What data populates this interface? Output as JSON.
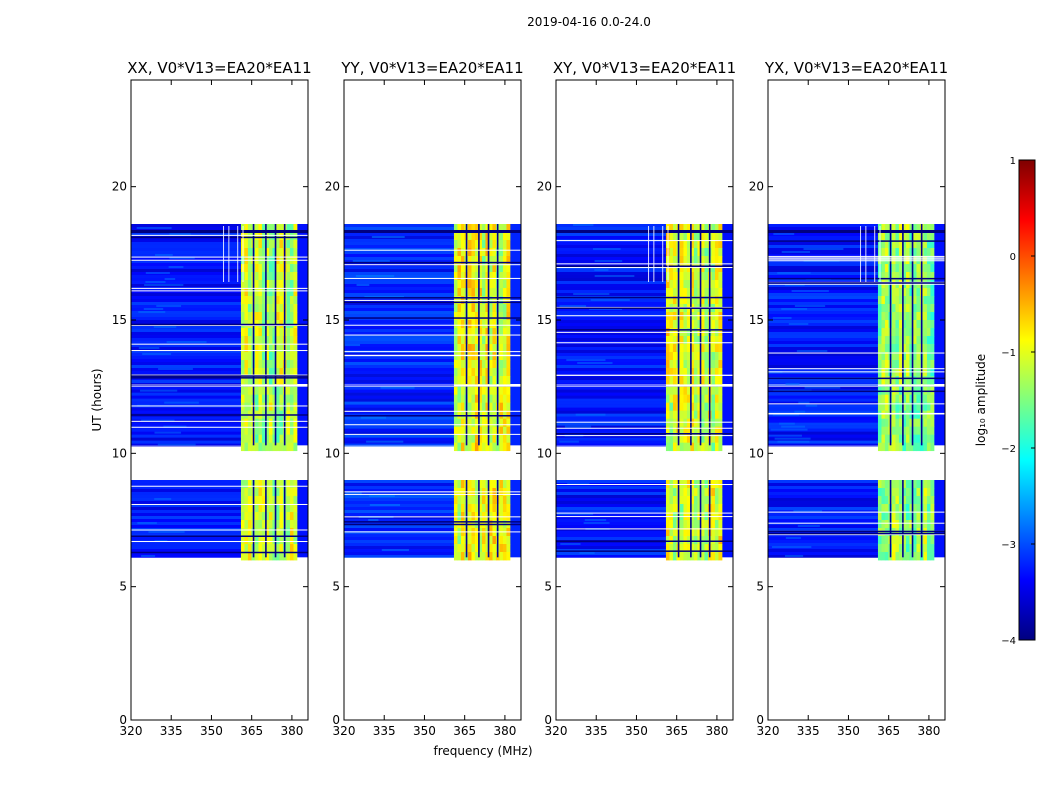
{
  "figure_title": "2019-04-16 0.0-24.0",
  "xlabel": "frequency (MHz)",
  "ylabel": "UT (hours)",
  "colorbar": {
    "label": "log₁₀ amplitude",
    "range": [
      -4,
      1
    ],
    "ticks": [
      "−4",
      "−3",
      "−2",
      "−1",
      "0",
      "1"
    ],
    "tick_values": [
      -4,
      -3,
      -2,
      -1,
      0,
      1
    ],
    "colormap": "jet",
    "colors": [
      "#00007f",
      "#0000ff",
      "#007fff",
      "#00ffff",
      "#7fff7f",
      "#ffff00",
      "#ff7f00",
      "#ff0000",
      "#7f0000"
    ]
  },
  "chart_data": [
    {
      "type": "heatmap",
      "title": "XX, V0*V13=EA20*EA11",
      "xlabel": "",
      "ylabel": "UT (hours)",
      "xlim": [
        320,
        386
      ],
      "ylim": [
        0,
        24
      ],
      "xticks": [
        "320",
        "335",
        "350",
        "365",
        "380"
      ],
      "xtick_values": [
        320,
        335,
        350,
        365,
        380
      ],
      "yticks": [
        "0",
        "5",
        "10",
        "15",
        "20"
      ],
      "ytick_values": [
        0,
        5,
        10,
        15,
        20
      ],
      "data_blocks_ut": [
        [
          6.1,
          9.0
        ],
        [
          10.3,
          12.5
        ],
        [
          12.6,
          18.6
        ]
      ],
      "background_log_amp": -3.3,
      "bright_band_mhz": [
        361,
        381
      ],
      "bright_log_amp": -1.2,
      "spikes": true
    },
    {
      "type": "heatmap",
      "title": "YY, V0*V13=EA20*EA11",
      "xlabel": "frequency (MHz)",
      "ylabel": "",
      "xlim": [
        320,
        386
      ],
      "ylim": [
        0,
        24
      ],
      "xticks": [
        "320",
        "335",
        "350",
        "365",
        "380"
      ],
      "xtick_values": [
        320,
        335,
        350,
        365,
        380
      ],
      "yticks": [
        "0",
        "5",
        "10",
        "15",
        "20"
      ],
      "ytick_values": [
        0,
        5,
        10,
        15,
        20
      ],
      "data_blocks_ut": [
        [
          6.1,
          9.0
        ],
        [
          10.3,
          12.5
        ],
        [
          12.6,
          18.6
        ]
      ],
      "background_log_amp": -3.2,
      "bright_band_mhz": [
        361,
        381
      ],
      "bright_log_amp": -1.0,
      "spikes": false
    },
    {
      "type": "heatmap",
      "title": "XY, V0*V13=EA20*EA11",
      "xlabel": "",
      "ylabel": "",
      "xlim": [
        320,
        386
      ],
      "ylim": [
        0,
        24
      ],
      "xticks": [
        "320",
        "335",
        "350",
        "365",
        "380"
      ],
      "xtick_values": [
        320,
        335,
        350,
        365,
        380
      ],
      "yticks": [
        "0",
        "5",
        "10",
        "15",
        "20"
      ],
      "ytick_values": [
        0,
        5,
        10,
        15,
        20
      ],
      "data_blocks_ut": [
        [
          6.1,
          9.0
        ],
        [
          10.3,
          12.5
        ],
        [
          12.6,
          18.6
        ]
      ],
      "background_log_amp": -3.3,
      "bright_band_mhz": [
        361,
        381
      ],
      "bright_log_amp": -1.1,
      "spikes": true
    },
    {
      "type": "heatmap",
      "title": "YX, V0*V13=EA20*EA11",
      "xlabel": "",
      "ylabel": "",
      "xlim": [
        320,
        386
      ],
      "ylim": [
        0,
        24
      ],
      "xticks": [
        "320",
        "335",
        "350",
        "365",
        "380"
      ],
      "xtick_values": [
        320,
        335,
        350,
        365,
        380
      ],
      "yticks": [
        "0",
        "5",
        "10",
        "15",
        "20"
      ],
      "ytick_values": [
        0,
        5,
        10,
        15,
        20
      ],
      "data_blocks_ut": [
        [
          6.1,
          9.0
        ],
        [
          10.3,
          12.5
        ],
        [
          12.6,
          18.6
        ]
      ],
      "background_log_amp": -3.3,
      "bright_band_mhz": [
        361,
        381
      ],
      "bright_log_amp": -1.4,
      "spikes": true
    }
  ]
}
